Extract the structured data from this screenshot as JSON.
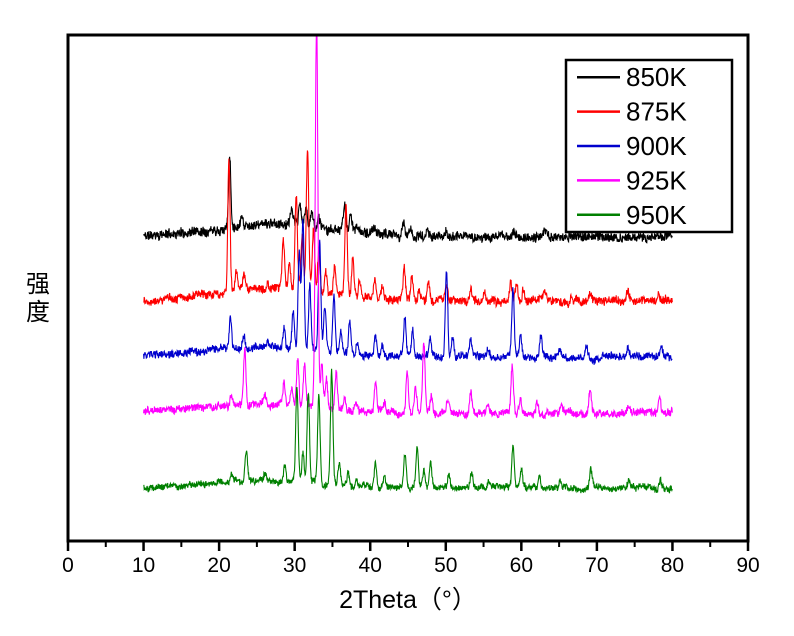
{
  "chart_data": {
    "type": "line",
    "title": "",
    "xlabel": "2Theta（°）",
    "ylabel": "强度",
    "xlim": [
      0,
      90
    ],
    "x_major_ticks": [
      0,
      10,
      20,
      30,
      40,
      50,
      60,
      70,
      80,
      90
    ],
    "x_tick_labels": [
      "0",
      "10",
      "20",
      "30",
      "40",
      "50",
      "60",
      "70",
      "80",
      "90"
    ],
    "x_minor_ticks": [
      5,
      15,
      25,
      35,
      45,
      55,
      65,
      75,
      85
    ],
    "x_data_range": [
      10,
      80
    ],
    "y_axis_numeric_labels": false,
    "grid": false,
    "legend_position": "top-right",
    "series": [
      {
        "name": "850K",
        "color": "#000000",
        "baseline_from_bottom": 304,
        "noise_amplitude": 4.5,
        "broad_hump": {
          "amplitude": 13,
          "center": 27,
          "width": 8
        },
        "seed": 11,
        "peaks": [
          [
            21.4,
            72,
            0.15
          ],
          [
            23.0,
            12
          ],
          [
            29.6,
            15
          ],
          [
            30.7,
            20
          ],
          [
            31.5,
            18
          ],
          [
            32.3,
            14
          ],
          [
            33.2,
            10
          ],
          [
            36.6,
            24
          ],
          [
            37.4,
            16
          ],
          [
            38.3,
            8
          ],
          [
            40.5,
            7
          ],
          [
            44.4,
            14
          ],
          [
            45.3,
            9
          ],
          [
            47.6,
            6
          ],
          [
            50.0,
            6
          ],
          [
            59.0,
            6
          ],
          [
            63.0,
            4
          ]
        ]
      },
      {
        "name": "875K",
        "color": "#ff0000",
        "baseline_from_bottom": 240,
        "noise_amplitude": 4.0,
        "broad_hump": {
          "amplitude": 12,
          "center": 27,
          "width": 8
        },
        "seed": 22,
        "peaks": [
          [
            21.3,
            132,
            0.15
          ],
          [
            22.3,
            20
          ],
          [
            23.3,
            16
          ],
          [
            26.4,
            8
          ],
          [
            28.5,
            48
          ],
          [
            29.3,
            25
          ],
          [
            30.2,
            98
          ],
          [
            31.0,
            55
          ],
          [
            31.7,
            138
          ],
          [
            32.5,
            65
          ],
          [
            33.2,
            45
          ],
          [
            34.1,
            22
          ],
          [
            35.3,
            28
          ],
          [
            36.8,
            88
          ],
          [
            37.7,
            40
          ],
          [
            38.6,
            16
          ],
          [
            40.6,
            20
          ],
          [
            41.6,
            10
          ],
          [
            44.5,
            30
          ],
          [
            45.5,
            22
          ],
          [
            46.5,
            12
          ],
          [
            47.7,
            20
          ],
          [
            50.1,
            16
          ],
          [
            53.3,
            14
          ],
          [
            55.1,
            8
          ],
          [
            58.6,
            18
          ],
          [
            59.4,
            20
          ],
          [
            60.3,
            14
          ],
          [
            63.1,
            10
          ],
          [
            66.6,
            6
          ],
          [
            69.1,
            8
          ],
          [
            74.1,
            12
          ],
          [
            78.1,
            7
          ]
        ]
      },
      {
        "name": "900K",
        "color": "#0000cd",
        "baseline_from_bottom": 184,
        "noise_amplitude": 3.5,
        "broad_hump": {
          "amplitude": 9,
          "center": 26,
          "width": 8
        },
        "seed": 33,
        "peaks": [
          [
            21.5,
            30
          ],
          [
            23.3,
            14
          ],
          [
            26.4,
            6
          ],
          [
            28.6,
            20
          ],
          [
            29.8,
            38
          ],
          [
            30.6,
            95
          ],
          [
            31.1,
            132
          ],
          [
            32.0,
            65
          ],
          [
            33.3,
            108
          ],
          [
            34.0,
            45
          ],
          [
            35.2,
            58
          ],
          [
            36.1,
            22
          ],
          [
            37.3,
            32
          ],
          [
            38.3,
            12
          ],
          [
            40.7,
            20
          ],
          [
            41.6,
            10
          ],
          [
            44.6,
            42
          ],
          [
            45.6,
            26
          ],
          [
            47.9,
            16
          ],
          [
            50.1,
            88
          ],
          [
            50.9,
            22
          ],
          [
            53.3,
            16
          ],
          [
            55.6,
            8
          ],
          [
            58.9,
            68
          ],
          [
            59.9,
            22
          ],
          [
            62.6,
            20
          ],
          [
            65.1,
            7
          ],
          [
            68.6,
            12
          ],
          [
            74.1,
            7
          ],
          [
            78.6,
            9
          ]
        ]
      },
      {
        "name": "925K",
        "color": "#ff00ff",
        "baseline_from_bottom": 128,
        "noise_amplitude": 3.5,
        "broad_hump": {
          "amplitude": 9,
          "center": 25,
          "width": 8
        },
        "seed": 44,
        "peaks": [
          [
            21.6,
            10
          ],
          [
            23.4,
            56
          ],
          [
            26.1,
            8
          ],
          [
            28.6,
            22
          ],
          [
            29.6,
            16
          ],
          [
            30.4,
            48
          ],
          [
            31.3,
            42
          ],
          [
            32.9,
            390,
            0.17
          ],
          [
            33.6,
            45
          ],
          [
            34.2,
            28
          ],
          [
            35.5,
            36
          ],
          [
            36.6,
            14
          ],
          [
            38.1,
            10
          ],
          [
            40.7,
            30
          ],
          [
            41.9,
            10
          ],
          [
            44.9,
            42
          ],
          [
            46.0,
            26
          ],
          [
            47.1,
            70
          ],
          [
            48.1,
            16
          ],
          [
            50.3,
            14
          ],
          [
            53.3,
            20
          ],
          [
            55.6,
            8
          ],
          [
            58.8,
            48
          ],
          [
            59.9,
            16
          ],
          [
            62.1,
            12
          ],
          [
            65.3,
            8
          ],
          [
            69.1,
            24
          ],
          [
            74.1,
            7
          ],
          [
            78.3,
            15
          ]
        ]
      },
      {
        "name": "950K",
        "color": "#008000",
        "baseline_from_bottom": 53,
        "noise_amplitude": 3.0,
        "broad_hump": {
          "amplitude": 7,
          "center": 26,
          "width": 8
        },
        "seed": 55,
        "peaks": [
          [
            21.6,
            8
          ],
          [
            23.6,
            30
          ],
          [
            26.1,
            6
          ],
          [
            28.7,
            16
          ],
          [
            30.3,
            95
          ],
          [
            31.1,
            28
          ],
          [
            31.8,
            92
          ],
          [
            33.2,
            90
          ],
          [
            34.9,
            112
          ],
          [
            35.9,
            22
          ],
          [
            37.1,
            14
          ],
          [
            38.2,
            8
          ],
          [
            40.7,
            26
          ],
          [
            41.9,
            9
          ],
          [
            44.6,
            32
          ],
          [
            46.2,
            40
          ],
          [
            47.1,
            16
          ],
          [
            48.0,
            24
          ],
          [
            50.4,
            12
          ],
          [
            53.4,
            16
          ],
          [
            55.7,
            7
          ],
          [
            58.9,
            42
          ],
          [
            60.0,
            18
          ],
          [
            62.4,
            12
          ],
          [
            65.1,
            7
          ],
          [
            69.2,
            18
          ],
          [
            74.2,
            6
          ],
          [
            78.4,
            9
          ]
        ]
      }
    ]
  },
  "legend": {
    "entries": [
      {
        "label": "850K",
        "color": "#000000"
      },
      {
        "label": "875K",
        "color": "#ff0000"
      },
      {
        "label": "900K",
        "color": "#0000cd"
      },
      {
        "label": "925K",
        "color": "#ff00ff"
      },
      {
        "label": "950K",
        "color": "#008000"
      }
    ]
  }
}
